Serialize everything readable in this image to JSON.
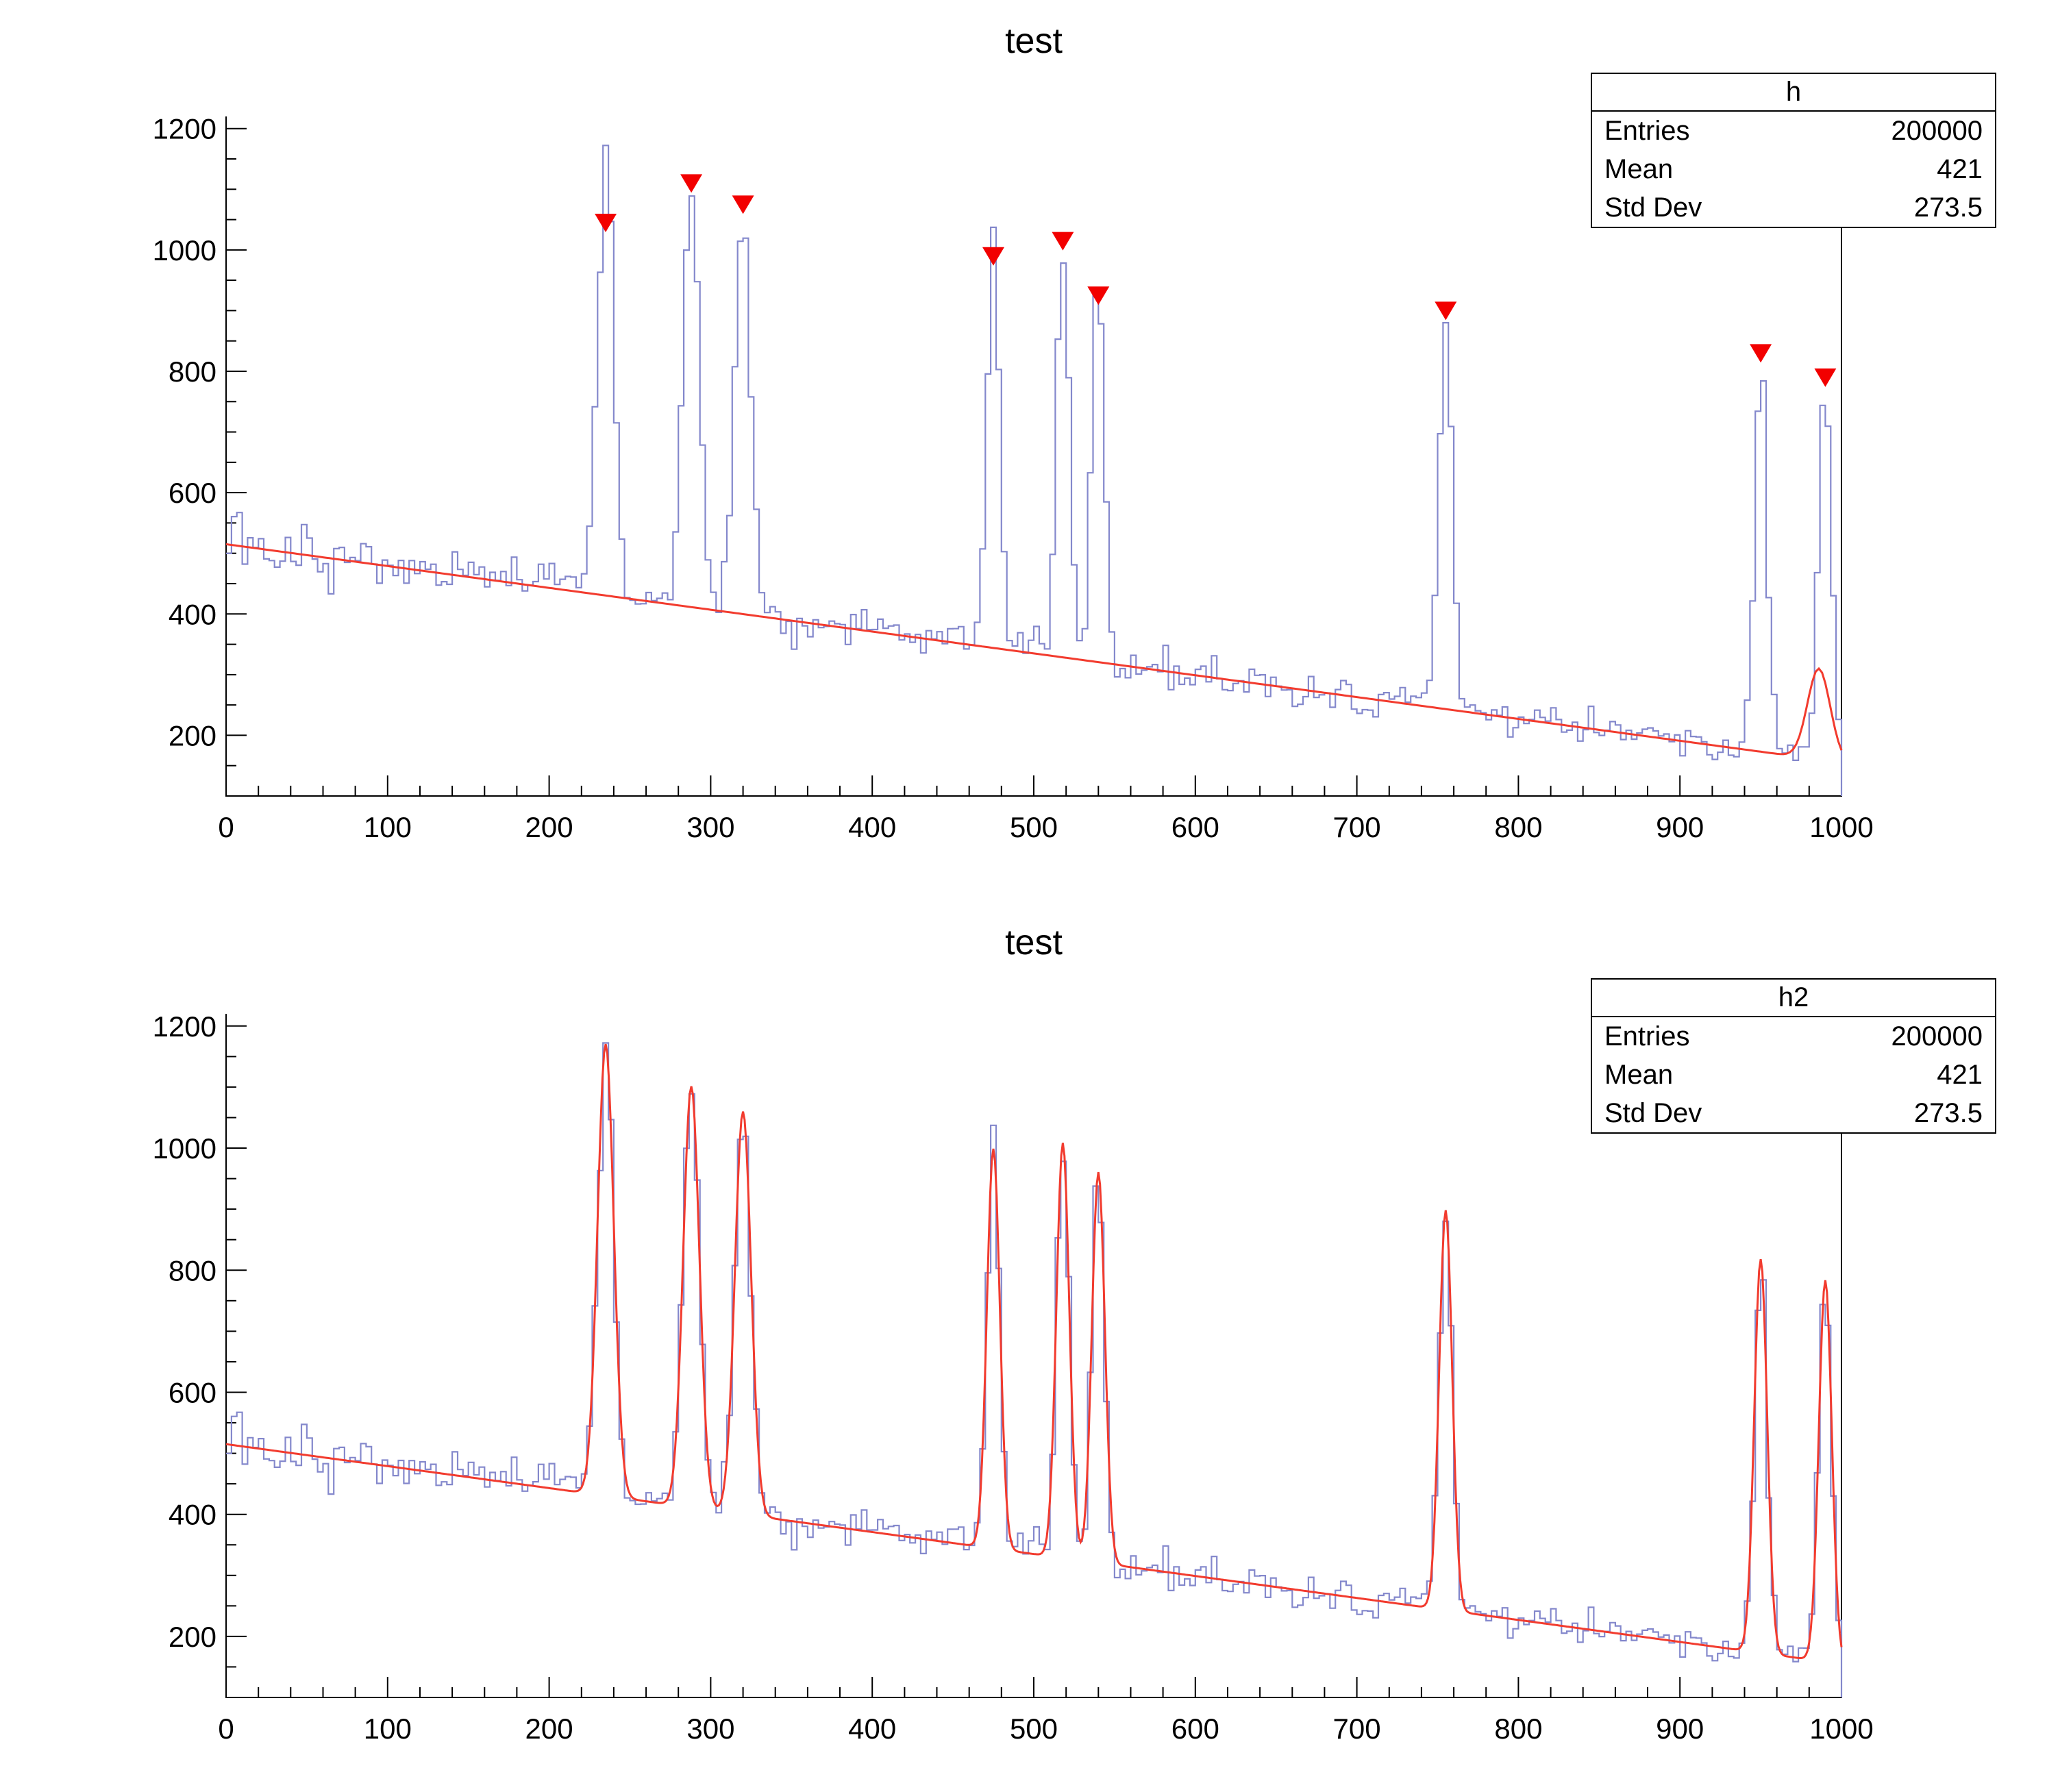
{
  "colors": {
    "histogram": "#8488cc",
    "overlay_red": "#f23b2e",
    "marker_red": "#f20000",
    "axis": "#000000"
  },
  "chart_data": [
    {
      "type": "line",
      "subtype": "histogram-with-found-peaks",
      "title": "test",
      "stats": {
        "name": "h",
        "rows": [
          {
            "label": "Entries",
            "value": "200000"
          },
          {
            "label": "Mean",
            "value": "421"
          },
          {
            "label": "Std Dev",
            "value": "273.5"
          }
        ]
      },
      "xlim": [
        0,
        1000
      ],
      "ylim": [
        100,
        1220
      ],
      "x_major_ticks": [
        0,
        100,
        200,
        300,
        400,
        500,
        600,
        700,
        800,
        900,
        1000
      ],
      "x_minor_step": 20,
      "y_major_ticks": [
        200,
        400,
        600,
        800,
        1000,
        1200
      ],
      "y_minor_step": 50,
      "bins": 300,
      "noise": {
        "seed": 13,
        "scale": 0.95
      },
      "background": {
        "y0": 515,
        "slope": -0.36
      },
      "background_bump": {
        "x": 986,
        "amp": 150,
        "sigma": 7
      },
      "peaks": [
        {
          "x": 235,
          "amp": 740,
          "sigma": 5,
          "marker_y": 1045
        },
        {
          "x": 288,
          "amp": 690,
          "sigma": 5,
          "marker_y": 1110
        },
        {
          "x": 320,
          "amp": 660,
          "sigma": 5,
          "marker_y": 1075
        },
        {
          "x": 475,
          "amp": 655,
          "sigma": 4,
          "marker_y": 990
        },
        {
          "x": 518,
          "amp": 680,
          "sigma": 4,
          "marker_y": 1015
        },
        {
          "x": 540,
          "amp": 640,
          "sigma": 4,
          "marker_y": 925
        },
        {
          "x": 755,
          "amp": 655,
          "sigma": 4,
          "marker_y": 900
        },
        {
          "x": 950,
          "amp": 645,
          "sigma": 4,
          "marker_y": 830
        },
        {
          "x": 990,
          "amp": 625,
          "sigma": 4,
          "marker_y": 790
        }
      ],
      "overlay": "background",
      "show_markers": true
    },
    {
      "type": "line",
      "subtype": "histogram-with-fit",
      "title": "test",
      "stats": {
        "name": "h2",
        "rows": [
          {
            "label": "Entries",
            "value": "200000"
          },
          {
            "label": "Mean",
            "value": "421"
          },
          {
            "label": "Std Dev",
            "value": "273.5"
          }
        ]
      },
      "xlim": [
        0,
        1000
      ],
      "ylim": [
        100,
        1220
      ],
      "x_major_ticks": [
        0,
        100,
        200,
        300,
        400,
        500,
        600,
        700,
        800,
        900,
        1000
      ],
      "x_minor_step": 20,
      "y_major_ticks": [
        200,
        400,
        600,
        800,
        1000,
        1200
      ],
      "y_minor_step": 50,
      "bins": 300,
      "noise": {
        "seed": 13,
        "scale": 0.95
      },
      "background": {
        "y0": 515,
        "slope": -0.36
      },
      "peaks": [
        {
          "x": 235,
          "amp": 740,
          "sigma": 5
        },
        {
          "x": 288,
          "amp": 690,
          "sigma": 5
        },
        {
          "x": 320,
          "amp": 660,
          "sigma": 5
        },
        {
          "x": 475,
          "amp": 655,
          "sigma": 4
        },
        {
          "x": 518,
          "amp": 680,
          "sigma": 4
        },
        {
          "x": 540,
          "amp": 640,
          "sigma": 4
        },
        {
          "x": 755,
          "amp": 655,
          "sigma": 4
        },
        {
          "x": 950,
          "amp": 645,
          "sigma": 4
        },
        {
          "x": 990,
          "amp": 625,
          "sigma": 4
        }
      ],
      "overlay": "fit",
      "show_markers": false
    }
  ]
}
